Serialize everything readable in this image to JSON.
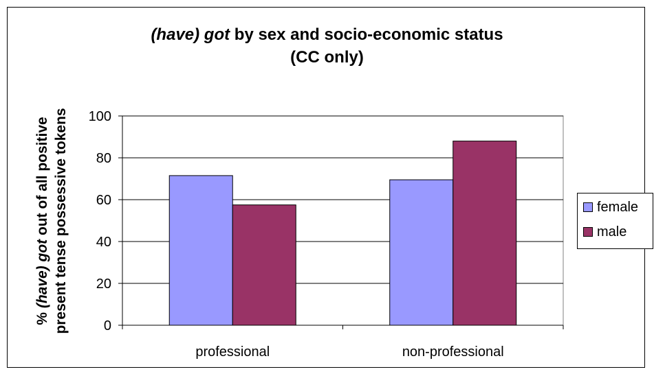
{
  "chart_data": {
    "type": "bar",
    "title": {
      "line1_italic": "(have) got",
      "line1_rest": " by sex and socio-economic status",
      "line2": "(CC only)"
    },
    "ylabel": {
      "line1_italic": "(have) got",
      "line1_prefix": "% ",
      "line1_suffix": " out of all positive",
      "line2": "present tense possessive tokens"
    },
    "xlabel": "",
    "categories": [
      "professional",
      "non-professional"
    ],
    "series": [
      {
        "name": "female",
        "values": [
          71.5,
          69.5
        ],
        "color": "#9999ff"
      },
      {
        "name": "male",
        "values": [
          57.5,
          88
        ],
        "color": "#993366"
      }
    ],
    "ylim": [
      0,
      100
    ],
    "yticks": [
      0,
      20,
      40,
      60,
      80,
      100
    ],
    "grid": true,
    "legend": "right"
  }
}
